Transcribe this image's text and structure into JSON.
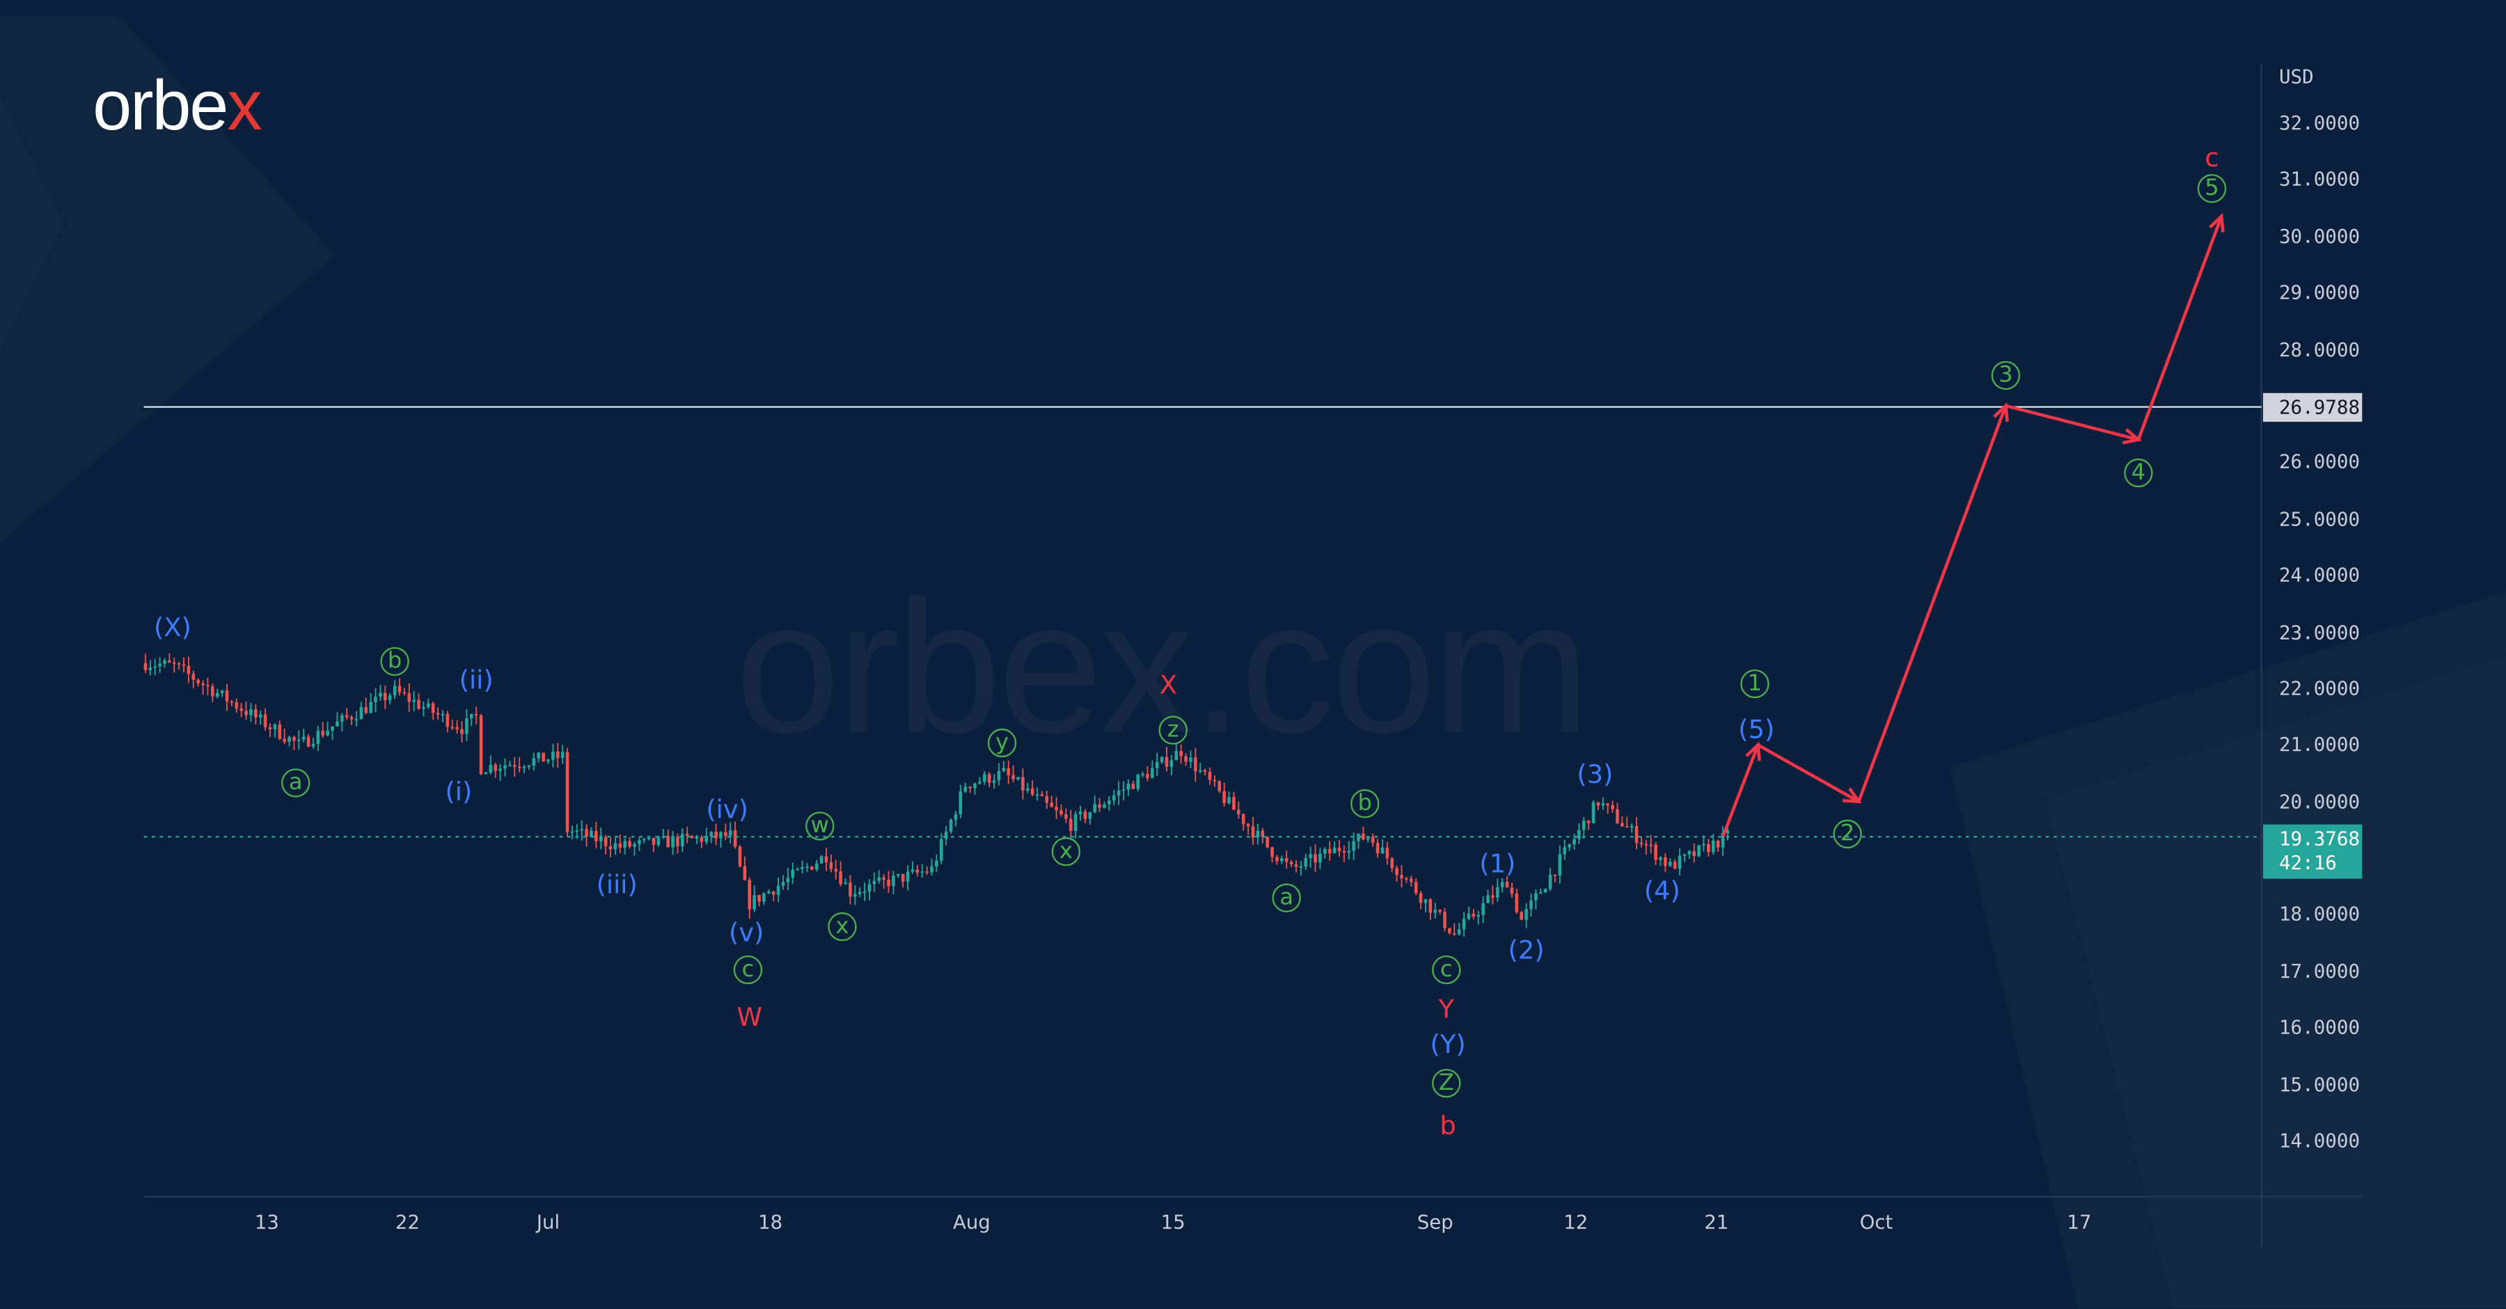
{
  "brand": {
    "logo_main": "orbe",
    "logo_x": "x",
    "watermark": "orbex.com"
  },
  "colors": {
    "background": "#0a1f3b",
    "up": "#26a69a",
    "down": "#ef5350",
    "projection": "#f2364a",
    "wave_blue": "#3d7bff",
    "wave_green": "#4caf50",
    "wave_red": "#f2364a"
  },
  "chart_data": {
    "type": "candlestick",
    "currency": "USD",
    "ylim": [
      13.5,
      32.5
    ],
    "y_ticks": [
      32,
      31,
      30,
      29,
      28,
      26,
      25,
      24,
      23,
      22,
      21,
      20,
      18,
      17,
      16,
      15,
      14
    ],
    "y_tick_labels": [
      "32.0000",
      "31.0000",
      "30.0000",
      "29.0000",
      "28.0000",
      "26.0000",
      "25.0000",
      "24.0000",
      "23.0000",
      "22.0000",
      "21.0000",
      "20.0000",
      "18.0000",
      "17.0000",
      "16.0000",
      "15.0000",
      "14.0000"
    ],
    "x_tick_labels": [
      "13",
      "22",
      "Jul",
      "18",
      "Aug",
      "15",
      "Sep",
      "12",
      "21",
      "Oct",
      "17"
    ],
    "price_path_waypoints": [
      {
        "bar": 0,
        "price": 22.45
      },
      {
        "bar": 6,
        "price": 22.4
      },
      {
        "bar": 32,
        "price": 21.0
      },
      {
        "bar": 52,
        "price": 21.95
      },
      {
        "bar": 66,
        "price": 21.3
      },
      {
        "bar": 70,
        "price": 20.6
      },
      {
        "bar": 69,
        "price": 21.5
      },
      {
        "bar": 87,
        "price": 20.8
      },
      {
        "bar": 87,
        "price": 19.5
      },
      {
        "bar": 98,
        "price": 19.2
      },
      {
        "bar": 121,
        "price": 19.4
      },
      {
        "bar": 125,
        "price": 18.2
      },
      {
        "bar": 141,
        "price": 19.05
      },
      {
        "bar": 146,
        "price": 18.4
      },
      {
        "bar": 163,
        "price": 18.8
      },
      {
        "bar": 170,
        "price": 20.3
      },
      {
        "bar": 178,
        "price": 20.5
      },
      {
        "bar": 192,
        "price": 19.6
      },
      {
        "bar": 215,
        "price": 20.9
      },
      {
        "bar": 233,
        "price": 19.2
      },
      {
        "bar": 238,
        "price": 18.8
      },
      {
        "bar": 254,
        "price": 19.4
      },
      {
        "bar": 272,
        "price": 17.65
      },
      {
        "bar": 283,
        "price": 18.6
      },
      {
        "bar": 286,
        "price": 17.9
      },
      {
        "bar": 302,
        "price": 20.0
      },
      {
        "bar": 317,
        "price": 18.85
      },
      {
        "bar": 329,
        "price": 19.38
      }
    ],
    "projection": [
      {
        "step": "(5)/1",
        "price": 21.0
      },
      {
        "step": "2",
        "price": 20.0
      },
      {
        "step": "3",
        "price": 27.0
      },
      {
        "step": "4",
        "price": 26.4
      },
      {
        "step": "5",
        "price": 30.35
      }
    ],
    "horizontal_level": {
      "price": 26.9788,
      "label": "26.9788"
    },
    "last_price": {
      "price": 19.3768,
      "label": "19.3768",
      "countdown": "42:16"
    }
  },
  "wave_labels": [
    {
      "text": "(X)",
      "style": "blue"
    },
    {
      "text": "a",
      "style": "circ"
    },
    {
      "text": "b",
      "style": "circ"
    },
    {
      "text": "(ii)",
      "style": "blue"
    },
    {
      "text": "(i)",
      "style": "blue"
    },
    {
      "text": "(iii)",
      "style": "blue"
    },
    {
      "text": "(iv)",
      "style": "blue"
    },
    {
      "text": "(v)",
      "style": "blue"
    },
    {
      "text": "c",
      "style": "circ"
    },
    {
      "text": "W",
      "style": "red"
    },
    {
      "text": "w",
      "style": "circ"
    },
    {
      "text": "x",
      "style": "circ"
    },
    {
      "text": "y",
      "style": "circ"
    },
    {
      "text": "x",
      "style": "circ"
    },
    {
      "text": "X",
      "style": "red"
    },
    {
      "text": "z",
      "style": "circ"
    },
    {
      "text": "b",
      "style": "circ"
    },
    {
      "text": "a",
      "style": "circ"
    },
    {
      "text": "(1)",
      "style": "blue"
    },
    {
      "text": "(2)",
      "style": "blue"
    },
    {
      "text": "c",
      "style": "circ"
    },
    {
      "text": "Y",
      "style": "red"
    },
    {
      "text": "(Y)",
      "style": "blue"
    },
    {
      "text": "Z",
      "style": "circ"
    },
    {
      "text": "b",
      "style": "red"
    },
    {
      "text": "(3)",
      "style": "blue"
    },
    {
      "text": "(4)",
      "style": "blue"
    },
    {
      "text": "1",
      "style": "circ"
    },
    {
      "text": "(5)",
      "style": "blue"
    },
    {
      "text": "2",
      "style": "circ"
    },
    {
      "text": "3",
      "style": "circ"
    },
    {
      "text": "4",
      "style": "circ"
    },
    {
      "text": "c",
      "style": "red"
    },
    {
      "text": "5",
      "style": "circ"
    }
  ]
}
